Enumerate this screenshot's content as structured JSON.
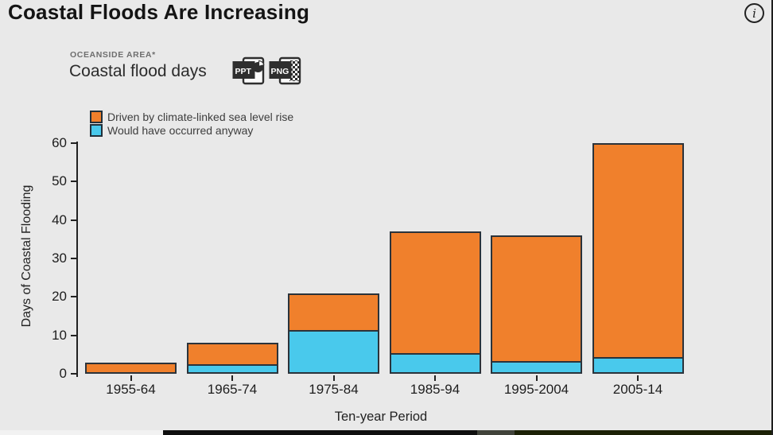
{
  "header": {
    "title": "Coastal Floods Are Increasing",
    "info_icon_glyph": "i"
  },
  "widget": {
    "eyebrow": "OCEANSIDE AREA*",
    "title": "Coastal flood days",
    "export_buttons": [
      {
        "label": "PPT",
        "format": "PowerPoint export"
      },
      {
        "label": "PNG",
        "format": "Image export"
      }
    ]
  },
  "legend": {
    "items": [
      {
        "label": "Driven by climate-linked sea level rise",
        "color": "#f0802c"
      },
      {
        "label": "Would have occurred anyway",
        "color": "#49c9ec"
      }
    ]
  },
  "chart_data": {
    "type": "bar",
    "stacked": true,
    "title": "Coastal flood days",
    "xlabel": "Ten-year Period",
    "ylabel": "Days of Coastal Flooding",
    "categories": [
      "1955-64",
      "1965-74",
      "1975-84",
      "1985-94",
      "1995-2004",
      "2005-14"
    ],
    "series": [
      {
        "name": "Driven by climate-linked sea level rise",
        "color": "#f0802c",
        "values": [
          3,
          6,
          10,
          32,
          33,
          56
        ]
      },
      {
        "name": "Would have occurred anyway",
        "color": "#49c9ec",
        "values": [
          0,
          2,
          11,
          5,
          3,
          4
        ]
      }
    ],
    "totals": [
      3,
      8,
      21,
      37,
      36,
      60
    ],
    "ylim": [
      0,
      60
    ],
    "yticks": [
      0,
      10,
      20,
      30,
      40,
      50,
      60
    ],
    "grid": false,
    "legend_position": "top-left",
    "bar_border_color": "#2b333b"
  },
  "colors": {
    "background": "#e9e9e9",
    "accent_orange": "#f0802c",
    "accent_cyan": "#49c9ec",
    "bar_border": "#2b333b",
    "text_dark": "#1c1c1c",
    "text_gray": "#6e6e6e"
  }
}
